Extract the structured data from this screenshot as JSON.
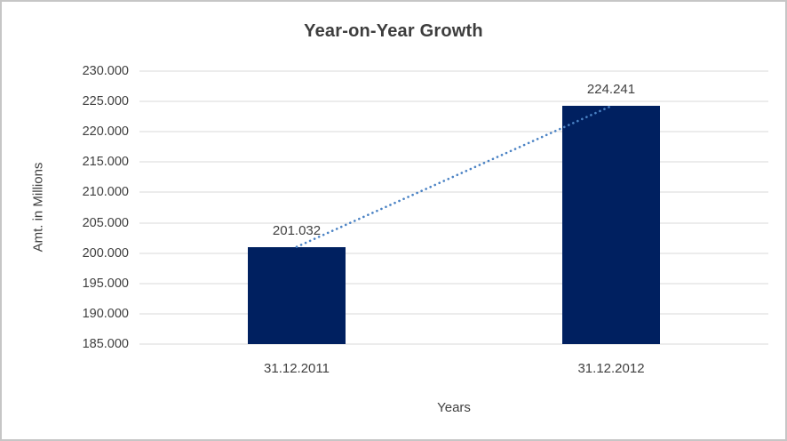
{
  "window": {
    "background": "#ffffff",
    "border_color": "#c6c6c6"
  },
  "chart_data": {
    "type": "bar",
    "title": "Year-on-Year Growth",
    "xlabel": "Years",
    "ylabel": "Amt. in Millions",
    "categories": [
      "31.12.2011",
      "31.12.2012"
    ],
    "values": [
      201032,
      224241
    ],
    "value_labels": [
      "201.032",
      "224.241"
    ],
    "ylim": [
      185000,
      230000
    ],
    "yticks": [
      {
        "value": 185000,
        "label": "185.000"
      },
      {
        "value": 190000,
        "label": "190.000"
      },
      {
        "value": 195000,
        "label": "195.000"
      },
      {
        "value": 200000,
        "label": "200.000"
      },
      {
        "value": 205000,
        "label": "205.000"
      },
      {
        "value": 210000,
        "label": "210.000"
      },
      {
        "value": 215000,
        "label": "215.000"
      },
      {
        "value": 220000,
        "label": "220.000"
      },
      {
        "value": 225000,
        "label": "225.000"
      },
      {
        "value": 230000,
        "label": "230.000"
      }
    ],
    "grid": true,
    "legend": false,
    "trendline": {
      "type": "linear",
      "style": "dotted",
      "color": "#4a82c4"
    },
    "colors": {
      "bar": "#002060",
      "gridline": "#d9d9d9",
      "text": "#404040",
      "title": "#3d3d3d"
    }
  }
}
